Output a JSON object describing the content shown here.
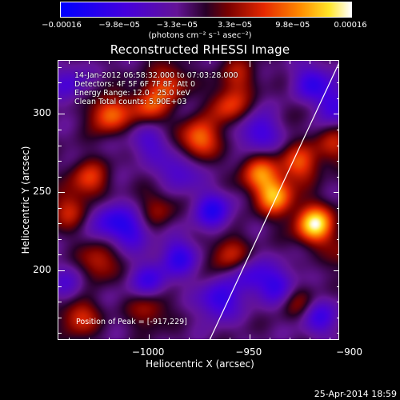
{
  "colorbar": {
    "labels": [
      "−0.00016",
      "−9.8e−05",
      "−3.3e−05",
      "3.3e−05",
      "9.8e−05",
      "0.00016"
    ],
    "unit": "(photons cm⁻² s⁻¹ asec⁻²)",
    "range": [
      -0.00016,
      0.00016
    ]
  },
  "chart_data": {
    "type": "heatmap",
    "title": "Reconstructed RHESSI Image",
    "xlabel": "Heliocentric X (arcsec)",
    "ylabel": "Heliocentric Y (arcsec)",
    "xlim": [
      -1045,
      -905
    ],
    "ylim": [
      155,
      334
    ],
    "x_ticks": [
      -1000,
      -950,
      -900
    ],
    "y_ticks": [
      200,
      250,
      300
    ],
    "x_tick_labels": [
      "−1000",
      "−950",
      "−900"
    ],
    "y_tick_labels": [
      "200",
      "250",
      "300"
    ],
    "peak": {
      "x": -917,
      "y": 229
    },
    "limb_line": [
      [
        -970,
        155
      ],
      [
        -905,
        334
      ]
    ],
    "annotations": [
      "14-Jan-2012 06:58:32.000 to 07:03:28.000",
      "Detectors: 4F 5F 6F 7F 8F, Att 0",
      "Energy Range: 12.0 - 25.0 keV",
      "Clean    Total counts: 5.90E+03"
    ],
    "peak_label": "Position of Peak = [-917,229]",
    "blobs": [
      {
        "x": -917,
        "y": 229,
        "v": 1.0
      },
      {
        "x": -937,
        "y": 247,
        "v": 0.75
      },
      {
        "x": -945,
        "y": 262,
        "v": 0.6
      },
      {
        "x": -925,
        "y": 268,
        "v": 0.55
      },
      {
        "x": -1020,
        "y": 300,
        "v": 0.65
      },
      {
        "x": -1000,
        "y": 305,
        "v": 0.55
      },
      {
        "x": -975,
        "y": 284,
        "v": 0.7
      },
      {
        "x": -990,
        "y": 320,
        "v": 0.5
      },
      {
        "x": -1030,
        "y": 258,
        "v": 0.5
      },
      {
        "x": -1040,
        "y": 238,
        "v": 0.4
      },
      {
        "x": -995,
        "y": 240,
        "v": 0.3
      },
      {
        "x": -1025,
        "y": 205,
        "v": 0.45
      },
      {
        "x": -1000,
        "y": 175,
        "v": 0.4
      },
      {
        "x": -1035,
        "y": 170,
        "v": 0.5
      },
      {
        "x": -960,
        "y": 210,
        "v": 0.45
      },
      {
        "x": -960,
        "y": 305,
        "v": 0.5
      },
      {
        "x": -955,
        "y": 325,
        "v": 0.35
      },
      {
        "x": -915,
        "y": 305,
        "v": 0.35
      },
      {
        "x": -908,
        "y": 280,
        "v": 0.4
      },
      {
        "x": -925,
        "y": 180,
        "v": 0.35
      },
      {
        "x": -900,
        "y": 210,
        "v": 0.3
      },
      {
        "x": -968,
        "y": 238,
        "v": -0.55
      },
      {
        "x": -1010,
        "y": 225,
        "v": -0.45
      },
      {
        "x": -1020,
        "y": 232,
        "v": -0.4
      },
      {
        "x": -985,
        "y": 208,
        "v": -0.5
      },
      {
        "x": -1000,
        "y": 192,
        "v": -0.45
      },
      {
        "x": -965,
        "y": 180,
        "v": -0.55
      },
      {
        "x": -950,
        "y": 195,
        "v": -0.4
      },
      {
        "x": -910,
        "y": 305,
        "v": -0.7
      },
      {
        "x": -918,
        "y": 320,
        "v": -0.5
      },
      {
        "x": -945,
        "y": 288,
        "v": -0.5
      },
      {
        "x": -985,
        "y": 263,
        "v": -0.4
      },
      {
        "x": -1000,
        "y": 282,
        "v": -0.35
      },
      {
        "x": -935,
        "y": 190,
        "v": -0.5
      },
      {
        "x": -915,
        "y": 170,
        "v": -0.45
      },
      {
        "x": -1040,
        "y": 320,
        "v": -0.35
      },
      {
        "x": -1040,
        "y": 190,
        "v": -0.3
      }
    ]
  },
  "footer": {
    "datestamp": "25-Apr-2014 18:59"
  }
}
